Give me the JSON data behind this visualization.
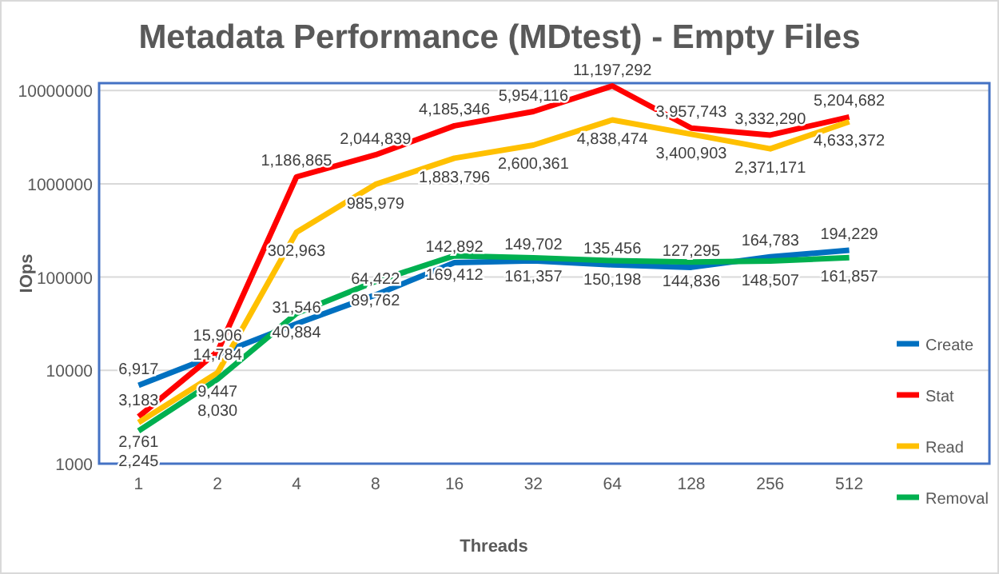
{
  "chart_data": {
    "type": "line",
    "title": "Metadata Performance (MDtest) - Empty Files",
    "xlabel": "Threads",
    "ylabel": "IOps",
    "categories": [
      "1",
      "2",
      "4",
      "8",
      "16",
      "32",
      "64",
      "128",
      "256",
      "512"
    ],
    "series": [
      {
        "name": "Create",
        "color": "#0070c0",
        "values": [
          6917,
          14784,
          31546,
          64422,
          142892,
          149702,
          135456,
          127295,
          164783,
          194229
        ],
        "value_labels": [
          "6,917",
          "14,784",
          "31,546",
          "64,422",
          "142,892",
          "149,702",
          "135,456",
          "127,295",
          "164,783",
          "194,229"
        ]
      },
      {
        "name": "Stat",
        "color": "#ff0000",
        "values": [
          3183,
          15906,
          1186865,
          2044839,
          4185346,
          5954116,
          11197292,
          3957743,
          3332290,
          5204682
        ],
        "value_labels": [
          "3,183",
          "15,906",
          "1,186,865",
          "2,044,839",
          "4,185,346",
          "5,954,116",
          "11,197,292",
          "3,957,743",
          "3,332,290",
          "5,204,682"
        ]
      },
      {
        "name": "Read",
        "color": "#ffc000",
        "values": [
          2761,
          9447,
          302963,
          985979,
          1883796,
          2600361,
          4838474,
          3400903,
          2371171,
          4633372
        ],
        "value_labels": [
          "2,761",
          "9,447",
          "302,963",
          "985,979",
          "1,883,796",
          "2,600,361",
          "4,838,474",
          "3,400,903",
          "2,371,171",
          "4,633,372"
        ]
      },
      {
        "name": "Removal",
        "color": "#00b050",
        "values": [
          2245,
          8030,
          40884,
          89762,
          169412,
          161357,
          150198,
          144836,
          148507,
          161857
        ],
        "value_labels": [
          "2,245",
          "8,030",
          "40,884",
          "89,762",
          "169,412",
          "161,357",
          "150,198",
          "144,836",
          "148,507",
          "161,857"
        ]
      }
    ],
    "log": true,
    "ylim": [
      1000,
      12000000
    ],
    "yticks": [
      1000,
      10000,
      100000,
      1000000,
      10000000
    ],
    "grid": "y",
    "legend": "right",
    "marker": "none",
    "line_style": "solid"
  }
}
